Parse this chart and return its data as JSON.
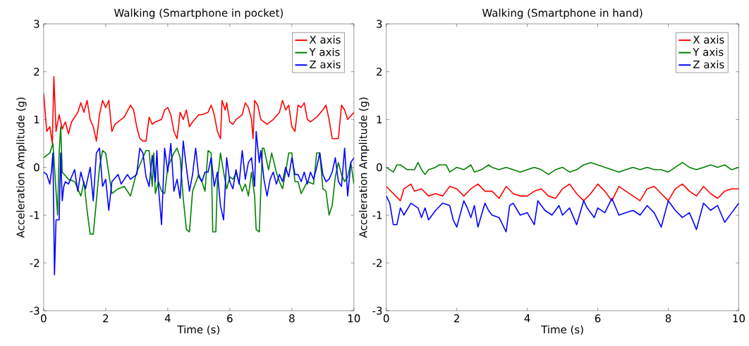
{
  "chart_data": [
    {
      "type": "line",
      "title": "Walking (Smartphone in pocket)",
      "xlabel": "Time (s)",
      "ylabel": "Acceleration Amplitude (g)",
      "xlim": [
        0,
        10
      ],
      "ylim": [
        -3,
        3
      ],
      "xticks": [
        0,
        2,
        4,
        6,
        8,
        10
      ],
      "yticks": [
        -3,
        -2,
        -1,
        0,
        1,
        2,
        3
      ],
      "grid": false,
      "legend": "top right",
      "series": [
        {
          "name": "X axis",
          "color": "#ff0000",
          "x": [
            0,
            0.1,
            0.2,
            0.28,
            0.33,
            0.4,
            0.5,
            0.6,
            0.7,
            0.8,
            0.9,
            1.0,
            1.1,
            1.2,
            1.3,
            1.4,
            1.5,
            1.6,
            1.7,
            1.8,
            1.9,
            2.0,
            2.1,
            2.2,
            2.3,
            2.4,
            2.6,
            2.8,
            2.9,
            3.0,
            3.1,
            3.2,
            3.3,
            3.4,
            3.5,
            3.6,
            3.8,
            3.9,
            4.0,
            4.1,
            4.2,
            4.3,
            4.4,
            4.5,
            4.6,
            4.7,
            4.8,
            5.0,
            5.1,
            5.3,
            5.4,
            5.5,
            5.6,
            5.7,
            5.75,
            5.85,
            5.9,
            6.0,
            6.1,
            6.2,
            6.4,
            6.5,
            6.6,
            6.7,
            6.75,
            6.8,
            6.9,
            7.0,
            7.2,
            7.4,
            7.6,
            7.7,
            7.8,
            7.9,
            8.0,
            8.1,
            8.2,
            8.3,
            8.4,
            8.5,
            8.6,
            8.8,
            9.0,
            9.1,
            9.2,
            9.3,
            9.4,
            9.5,
            9.6,
            9.7,
            9.8,
            10.0
          ],
          "values": [
            1.55,
            0.75,
            0.85,
            0.5,
            1.9,
            0.75,
            1.1,
            0.8,
            0.95,
            0.7,
            0.95,
            1.05,
            1.15,
            1.35,
            1.15,
            1.4,
            1.0,
            0.85,
            0.55,
            1.1,
            1.4,
            1.25,
            1.4,
            0.75,
            0.9,
            0.95,
            1.05,
            1.3,
            1.2,
            0.85,
            0.6,
            0.55,
            0.55,
            1.05,
            0.9,
            0.95,
            1.0,
            1.2,
            1.25,
            1.1,
            0.75,
            0.6,
            1.15,
            1.0,
            1.2,
            0.85,
            0.95,
            1.1,
            1.1,
            1.15,
            1.3,
            1.1,
            0.75,
            0.6,
            1.4,
            1.2,
            1.35,
            0.95,
            0.9,
            1.0,
            1.1,
            1.35,
            1.25,
            1.0,
            0.6,
            1.4,
            1.3,
            1.0,
            0.9,
            1.0,
            1.15,
            1.4,
            1.2,
            1.3,
            0.85,
            0.75,
            1.3,
            1.25,
            1.35,
            1.0,
            0.95,
            1.05,
            1.2,
            1.3,
            1.0,
            0.6,
            0.6,
            0.6,
            1.3,
            1.2,
            1.0,
            1.15
          ]
        },
        {
          "name": "Y axis",
          "color": "#008000",
          "x": [
            0,
            0.1,
            0.2,
            0.3,
            0.35,
            0.45,
            0.5,
            0.55,
            0.6,
            0.8,
            1.0,
            1.1,
            1.2,
            1.3,
            1.4,
            1.5,
            1.6,
            1.7,
            1.8,
            1.9,
            2.0,
            2.2,
            2.4,
            2.6,
            2.8,
            3.0,
            3.1,
            3.3,
            3.4,
            3.5,
            3.55,
            3.6,
            3.7,
            3.8,
            3.9,
            4.0,
            4.2,
            4.3,
            4.4,
            4.5,
            4.6,
            4.7,
            4.8,
            5.0,
            5.1,
            5.2,
            5.3,
            5.4,
            5.45,
            5.55,
            5.6,
            5.7,
            5.8,
            5.9,
            6.0,
            6.1,
            6.2,
            6.4,
            6.5,
            6.6,
            6.7,
            6.8,
            6.85,
            6.95,
            7.05,
            7.1,
            7.25,
            7.35,
            7.5,
            7.6,
            7.7,
            7.8,
            7.9,
            8.0,
            8.1,
            8.2,
            8.3,
            8.5,
            8.7,
            8.8,
            8.9,
            9.0,
            9.1,
            9.2,
            9.3,
            9.4,
            9.5,
            9.6,
            9.7,
            9.8,
            9.9,
            10.0
          ],
          "values": [
            0.2,
            0.25,
            0.3,
            0.5,
            0.0,
            -1.0,
            0.3,
            0.85,
            -0.1,
            -0.25,
            -0.3,
            -0.45,
            -0.6,
            -0.3,
            -0.9,
            -1.4,
            -1.4,
            -0.7,
            0.0,
            0.35,
            0.3,
            -0.55,
            -0.45,
            -0.4,
            -0.6,
            -0.1,
            0.05,
            0.35,
            0.35,
            -0.4,
            0.3,
            -0.55,
            -0.3,
            -0.5,
            -0.55,
            0.0,
            0.3,
            0.4,
            0.2,
            -0.65,
            -1.3,
            -1.35,
            -0.5,
            -0.15,
            -0.3,
            -0.5,
            0.35,
            0.3,
            -1.35,
            -1.35,
            -0.3,
            0.3,
            -0.1,
            -0.45,
            -0.2,
            -0.25,
            -0.12,
            -0.5,
            -0.35,
            -0.6,
            -0.1,
            -0.6,
            -1.3,
            -1.35,
            0.4,
            0.4,
            -0.05,
            0.3,
            -0.1,
            -0.3,
            -0.45,
            -0.1,
            0.3,
            0.3,
            -0.3,
            -0.3,
            -0.55,
            -0.3,
            -0.35,
            0.3,
            0.3,
            -0.45,
            -0.5,
            -1.0,
            -0.8,
            -0.2,
            0.1,
            -0.15,
            -0.3,
            -0.2,
            0.1,
            -0.35
          ]
        },
        {
          "name": "Z axis",
          "color": "#0000ff",
          "x": [
            0,
            0.1,
            0.2,
            0.25,
            0.3,
            0.35,
            0.4,
            0.5,
            0.55,
            0.6,
            0.65,
            0.7,
            0.8,
            0.9,
            1.0,
            1.1,
            1.2,
            1.3,
            1.35,
            1.5,
            1.6,
            1.7,
            1.8,
            1.9,
            2.0,
            2.1,
            2.2,
            2.4,
            2.5,
            2.7,
            2.8,
            3.0,
            3.1,
            3.2,
            3.3,
            3.4,
            3.5,
            3.6,
            3.65,
            3.7,
            3.8,
            3.9,
            4.0,
            4.1,
            4.2,
            4.3,
            4.4,
            4.5,
            4.6,
            4.7,
            4.8,
            4.9,
            5.0,
            5.1,
            5.2,
            5.3,
            5.4,
            5.5,
            5.6,
            5.7,
            5.8,
            5.9,
            6.0,
            6.1,
            6.2,
            6.3,
            6.4,
            6.5,
            6.6,
            6.7,
            6.8,
            6.85,
            6.95,
            7.0,
            7.1,
            7.2,
            7.3,
            7.4,
            7.5,
            7.6,
            7.7,
            7.8,
            7.9,
            8.0,
            8.1,
            8.2,
            8.3,
            8.4,
            8.5,
            8.6,
            8.7,
            8.8,
            8.9,
            9.0,
            9.1,
            9.2,
            9.3,
            9.4,
            9.5,
            9.6,
            9.7,
            9.8,
            9.9,
            10.0
          ],
          "values": [
            -0.1,
            -0.15,
            -0.35,
            -0.1,
            0.3,
            -2.25,
            -1.1,
            -1.1,
            0.3,
            -0.7,
            -0.4,
            -0.3,
            -0.35,
            -0.2,
            -0.05,
            -0.5,
            -0.1,
            -0.35,
            -0.45,
            0.0,
            -0.7,
            0.3,
            0.4,
            -0.4,
            -0.25,
            -0.9,
            -0.3,
            -0.15,
            -0.35,
            -0.15,
            -0.25,
            -0.15,
            0.4,
            0.3,
            -0.2,
            -0.4,
            0.25,
            -0.3,
            0.35,
            -0.4,
            -1.2,
            0.4,
            -0.1,
            0.5,
            -0.5,
            -0.25,
            -0.65,
            0.55,
            0.0,
            -0.5,
            -0.15,
            0.4,
            -0.2,
            -0.3,
            -0.1,
            -0.1,
            0.2,
            -0.4,
            -0.1,
            -0.8,
            -1.1,
            0.2,
            -0.3,
            -0.45,
            -0.05,
            -0.35,
            0.35,
            -0.25,
            0.1,
            0.2,
            -0.4,
            0.75,
            0.1,
            0.35,
            -0.25,
            -0.6,
            -0.25,
            -0.1,
            -0.35,
            -0.15,
            -0.3,
            0.0,
            -0.2,
            0.2,
            -0.15,
            -0.15,
            -0.3,
            -0.1,
            -0.35,
            -0.1,
            -0.25,
            0.0,
            0.3,
            -0.15,
            -0.3,
            -0.25,
            -0.1,
            0.2,
            -0.3,
            -0.4,
            0.4,
            -0.6,
            0.1,
            0.2
          ]
        }
      ]
    },
    {
      "type": "line",
      "title": "Walking (Smartphone in hand)",
      "xlabel": "Time (s)",
      "ylabel": "Acceleration Amplitude (g)",
      "xlim": [
        0,
        10
      ],
      "ylim": [
        -3,
        3
      ],
      "xticks": [
        0,
        2,
        4,
        6,
        8,
        10
      ],
      "yticks": [
        -3,
        -2,
        -1,
        0,
        1,
        2,
        3
      ],
      "grid": false,
      "legend": "top right",
      "series": [
        {
          "name": "X axis",
          "color": "#ff0000",
          "x": [
            0,
            0.2,
            0.4,
            0.5,
            0.7,
            0.8,
            1.0,
            1.2,
            1.4,
            1.6,
            1.8,
            2.0,
            2.2,
            2.4,
            2.6,
            2.8,
            3.0,
            3.2,
            3.4,
            3.6,
            3.8,
            4.0,
            4.2,
            4.4,
            4.6,
            4.8,
            5.0,
            5.2,
            5.4,
            5.6,
            5.8,
            6.0,
            6.2,
            6.4,
            6.6,
            6.8,
            7.0,
            7.2,
            7.4,
            7.6,
            7.8,
            8.0,
            8.2,
            8.4,
            8.6,
            8.8,
            9.0,
            9.2,
            9.4,
            9.6,
            9.8,
            10.0
          ],
          "values": [
            -0.4,
            -0.55,
            -0.7,
            -0.45,
            -0.35,
            -0.5,
            -0.45,
            -0.6,
            -0.55,
            -0.6,
            -0.4,
            -0.45,
            -0.6,
            -0.45,
            -0.35,
            -0.5,
            -0.5,
            -0.65,
            -0.4,
            -0.55,
            -0.6,
            -0.6,
            -0.5,
            -0.45,
            -0.6,
            -0.65,
            -0.45,
            -0.35,
            -0.55,
            -0.7,
            -0.55,
            -0.35,
            -0.5,
            -0.7,
            -0.4,
            -0.5,
            -0.6,
            -0.7,
            -0.45,
            -0.4,
            -0.55,
            -0.7,
            -0.45,
            -0.35,
            -0.5,
            -0.6,
            -0.4,
            -0.55,
            -0.65,
            -0.5,
            -0.45,
            -0.45
          ]
        },
        {
          "name": "Y axis",
          "color": "#008000",
          "x": [
            0,
            0.2,
            0.3,
            0.4,
            0.6,
            0.8,
            0.9,
            1.0,
            1.1,
            1.2,
            1.4,
            1.5,
            1.7,
            1.8,
            2.0,
            2.2,
            2.4,
            2.5,
            2.7,
            2.9,
            3.0,
            3.2,
            3.4,
            3.6,
            3.8,
            4.0,
            4.2,
            4.4,
            4.6,
            4.8,
            5.0,
            5.2,
            5.4,
            5.6,
            5.8,
            6.0,
            6.2,
            6.4,
            6.6,
            6.8,
            7.0,
            7.2,
            7.4,
            7.6,
            7.8,
            8.0,
            8.2,
            8.4,
            8.6,
            8.8,
            9.0,
            9.2,
            9.4,
            9.6,
            9.8,
            10.0
          ],
          "values": [
            0.0,
            -0.1,
            0.05,
            0.05,
            -0.05,
            -0.05,
            0.1,
            -0.05,
            -0.15,
            -0.05,
            0.0,
            0.05,
            0.05,
            -0.1,
            0.0,
            -0.05,
            0.05,
            -0.1,
            -0.05,
            0.05,
            0.0,
            -0.05,
            0.0,
            -0.05,
            -0.1,
            -0.05,
            0.0,
            -0.05,
            -0.15,
            -0.05,
            0.0,
            -0.1,
            -0.05,
            0.05,
            0.1,
            0.05,
            0.0,
            -0.05,
            -0.1,
            -0.05,
            0.0,
            -0.05,
            0.0,
            -0.05,
            -0.05,
            -0.1,
            0.0,
            0.1,
            0.0,
            -0.05,
            0.0,
            0.05,
            0.0,
            0.05,
            -0.05,
            0.0
          ]
        },
        {
          "name": "Z axis",
          "color": "#0000ff",
          "x": [
            0,
            0.1,
            0.2,
            0.3,
            0.4,
            0.5,
            0.7,
            0.9,
            1.0,
            1.1,
            1.2,
            1.4,
            1.6,
            1.8,
            1.9,
            2.0,
            2.2,
            2.3,
            2.4,
            2.5,
            2.6,
            2.8,
            2.9,
            3.0,
            3.2,
            3.4,
            3.5,
            3.6,
            3.8,
            4.0,
            4.2,
            4.3,
            4.5,
            4.7,
            4.9,
            5.0,
            5.2,
            5.4,
            5.6,
            5.7,
            5.9,
            6.0,
            6.2,
            6.4,
            6.6,
            6.8,
            7.0,
            7.2,
            7.4,
            7.6,
            7.8,
            8.0,
            8.2,
            8.4,
            8.6,
            8.8,
            9.0,
            9.2,
            9.4,
            9.6,
            9.8,
            10.0
          ],
          "values": [
            -0.6,
            -0.75,
            -1.2,
            -1.2,
            -0.85,
            -1.0,
            -0.75,
            -0.85,
            -1.05,
            -0.85,
            -1.1,
            -0.9,
            -0.75,
            -0.8,
            -1.1,
            -1.25,
            -0.7,
            -0.85,
            -1.05,
            -0.8,
            -1.25,
            -0.75,
            -0.9,
            -1.0,
            -1.05,
            -1.35,
            -0.8,
            -0.75,
            -1.0,
            -0.95,
            -1.2,
            -0.7,
            -0.9,
            -1.0,
            -0.8,
            -1.0,
            -0.85,
            -1.2,
            -0.7,
            -0.85,
            -1.05,
            -0.85,
            -0.95,
            -0.65,
            -1.0,
            -0.95,
            -0.9,
            -1.0,
            -0.8,
            -0.95,
            -1.25,
            -0.7,
            -0.9,
            -1.05,
            -0.95,
            -1.3,
            -0.75,
            -0.9,
            -0.8,
            -1.15,
            -0.95,
            -0.75
          ]
        }
      ]
    }
  ]
}
